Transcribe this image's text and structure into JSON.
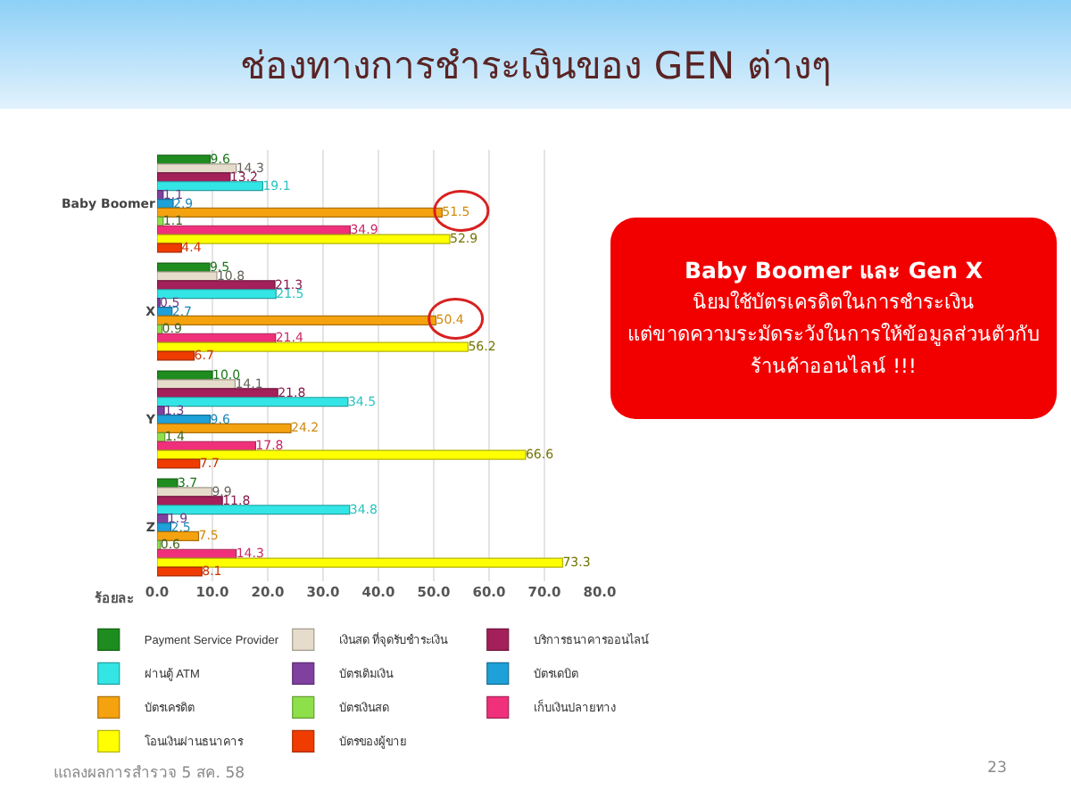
{
  "chart_data": {
    "type": "bar",
    "orientation": "horizontal",
    "title": "ช่องทางการชำระเงินของ GEN ต่างๆ",
    "xlabel": "ร้อยละ",
    "categories": [
      "Baby Boomer",
      "X",
      "Y",
      "Z"
    ],
    "series": [
      {
        "name": "Payment Service Provider",
        "color": "#1e8c1e",
        "values": [
          9.6,
          9.5,
          10.0,
          3.7
        ],
        "value_labels": [
          "9.6",
          "9.5",
          "10.0",
          "3.7"
        ]
      },
      {
        "name": "เงินสด ที่จุดรับชำระเงิน",
        "color": "#e6dccb",
        "values": [
          14.3,
          10.8,
          14.1,
          9.9
        ],
        "value_labels": [
          "14.3",
          "10.8",
          "14.1",
          "9.9"
        ]
      },
      {
        "name": "บริการธนาคารออนไลน์",
        "color": "#a3205a",
        "values": [
          13.2,
          21.3,
          21.8,
          11.8
        ],
        "value_labels": [
          "13.2",
          "21.3",
          "21.8",
          "11.8"
        ]
      },
      {
        "name": "ผ่านตู้ ATM",
        "color": "#33e5e5",
        "values": [
          19.1,
          21.5,
          34.5,
          34.8
        ],
        "value_labels": [
          "19.1",
          "21.5",
          "34.5",
          "34.8"
        ]
      },
      {
        "name": "บัตรเติมเงิน",
        "color": "#8040a0",
        "values": [
          1.1,
          0.5,
          1.3,
          1.9
        ],
        "value_labels": [
          "1.1",
          "0.5",
          "1.3",
          "1.9"
        ]
      },
      {
        "name": "บัตรเดบิต",
        "color": "#1ea0d8",
        "values": [
          2.9,
          2.7,
          9.6,
          2.5
        ],
        "value_labels": [
          "2.9",
          "2.7",
          "9.6",
          "2.5"
        ]
      },
      {
        "name": "บัตรเครดิต",
        "color": "#f5a20f",
        "values": [
          51.5,
          50.4,
          24.2,
          7.5
        ],
        "value_labels": [
          "51.5",
          "50.4",
          "24.2",
          "7.5"
        ]
      },
      {
        "name": "บัตรเงินสด",
        "color": "#8ee04a",
        "values": [
          1.1,
          0.9,
          1.4,
          0.6
        ],
        "value_labels": [
          "1.1",
          "0.9",
          "1.4",
          "0.6"
        ]
      },
      {
        "name": "เก็บเงินปลายทาง",
        "color": "#f0307a",
        "values": [
          34.9,
          21.4,
          17.8,
          14.3
        ],
        "value_labels": [
          "34.9",
          "21.4",
          "17.8",
          "14.3"
        ]
      },
      {
        "name": "โอนเงินผ่านธนาคาร",
        "color": "#ffff00",
        "values": [
          52.9,
          56.2,
          66.6,
          73.3
        ],
        "value_labels": [
          "52.9",
          "56.2",
          "66.6",
          "73.3"
        ]
      },
      {
        "name": "บัตรของผู้ขาย",
        "color": "#f03c00",
        "values": [
          4.4,
          6.7,
          7.7,
          8.1
        ],
        "value_labels": [
          "4.4",
          "6.7",
          "7.7",
          "8.1"
        ]
      }
    ],
    "xlim": [
      0,
      80
    ],
    "xticks": [
      {
        "value": 0,
        "label": "0.0"
      },
      {
        "value": 10,
        "label": "10.0"
      },
      {
        "value": 20,
        "label": "20.0"
      },
      {
        "value": 30,
        "label": "30.0"
      },
      {
        "value": 40,
        "label": "40.0"
      },
      {
        "value": 50,
        "label": "50.0"
      },
      {
        "value": 60,
        "label": "60.0"
      },
      {
        "value": 70,
        "label": "70.0"
      },
      {
        "value": 80,
        "label": "80.0"
      }
    ],
    "grid": "x",
    "legend": "bottom",
    "annotations": [
      "Baby Boomer และ Gen X\nนิยมใช้บัตรเครดิตในการชำระเงิน\nแต่ขาดความระมัดระวังในการให้ข้อมูลส่วนตัวกับ\nร้านค้าออนไลน์ !!!",
      "แถลงผลการสำรวจ 5 สค. 58",
      "23"
    ]
  }
}
